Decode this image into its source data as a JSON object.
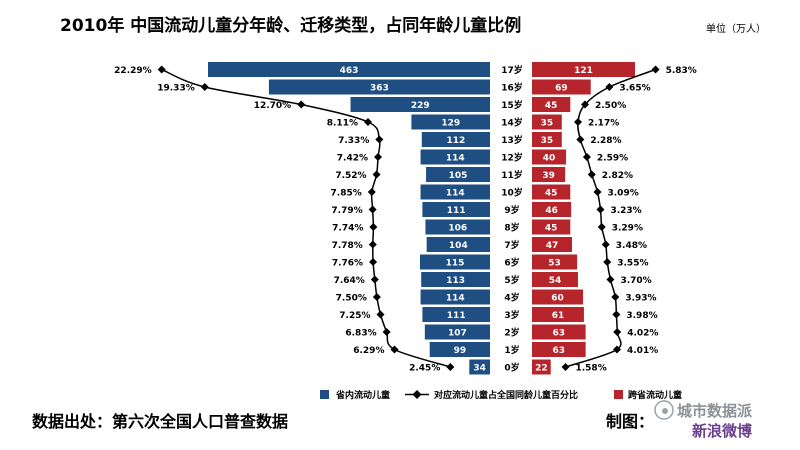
{
  "title": "2010年 中国流动儿童分年龄、迁移类型，占同年龄儿童比例",
  "unit": "单位（万人）",
  "footer": {
    "source": "数据出处：第六次全国人口普查数据",
    "maker": "制图："
  },
  "watermark": {
    "line1": "城市数据派",
    "line2": "新浪微博"
  },
  "colors": {
    "intra": "#1f4e83",
    "inter": "#b5252b",
    "line": "#000000"
  },
  "chart_data": {
    "type": "bar",
    "categories": [
      "17岁",
      "16岁",
      "15岁",
      "14岁",
      "13岁",
      "12岁",
      "11岁",
      "10岁",
      "9岁",
      "8岁",
      "7岁",
      "6岁",
      "5岁",
      "4岁",
      "3岁",
      "2岁",
      "1岁",
      "0岁"
    ],
    "series": [
      {
        "name": "省内流动儿童",
        "values": [
          463,
          363,
          229,
          129,
          112,
          114,
          105,
          114,
          111,
          106,
          104,
          115,
          113,
          114,
          111,
          107,
          99,
          34
        ]
      },
      {
        "name": "跨省流动儿童",
        "values": [
          121,
          69,
          45,
          35,
          35,
          40,
          39,
          45,
          46,
          45,
          47,
          53,
          54,
          60,
          61,
          63,
          63,
          22
        ]
      }
    ],
    "left_pct": {
      "name": "对应流动儿童占全国同龄儿童百分比",
      "labels": [
        "22.29%",
        "19.33%",
        "12.70%",
        "8.11%",
        "7.33%",
        "7.42%",
        "7.52%",
        "7.85%",
        "7.79%",
        "7.74%",
        "7.78%",
        "7.76%",
        "7.64%",
        "7.50%",
        "7.25%",
        "6.83%",
        "6.29%",
        "2.45%"
      ]
    },
    "right_pct": {
      "name": "对应流动儿童占全国同龄儿童百分比",
      "labels": [
        "5.83%",
        "3.65%",
        "2.50%",
        "2.17%",
        "2.28%",
        "2.59%",
        "2.82%",
        "3.09%",
        "3.23%",
        "3.29%",
        "3.48%",
        "3.55%",
        "3.70%",
        "3.93%",
        "3.98%",
        "4.02%",
        "4.01%",
        "1.58%"
      ]
    },
    "legend": [
      "省内流动儿童",
      "对应流动儿童占全国同龄儿童百分比",
      "跨省流动儿童"
    ]
  }
}
